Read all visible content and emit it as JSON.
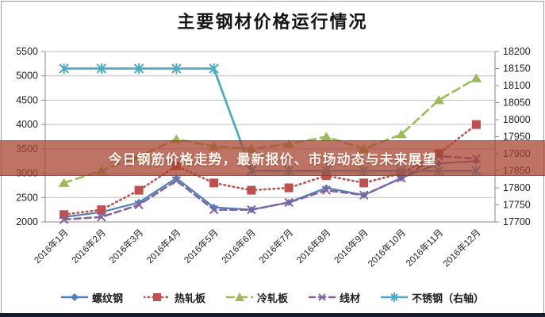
{
  "title": "主要钢材价格运行情况",
  "overlay": {
    "text": "今日钢筋价格走势，最新报价、市场动态与未来展望",
    "bg_color": "#aa4430",
    "text_color": "#fdf6ec"
  },
  "chart_data": {
    "type": "line",
    "title": "主要钢材价格运行情况",
    "categories": [
      "2016年1月",
      "2016年2月",
      "2016年3月",
      "2016年4月",
      "2016年5月",
      "2016年6月",
      "2016年7月",
      "2016年8月",
      "2016年9月",
      "2016年10月",
      "2016年11月",
      "2016年12月"
    ],
    "left_axis": {
      "min": 2000,
      "max": 5500,
      "step": 500,
      "ticks": [
        "5500",
        "5000",
        "4500",
        "4000",
        "3500",
        "3000",
        "2500",
        "2000"
      ]
    },
    "right_axis": {
      "min": 17700,
      "max": 18200,
      "step": 50,
      "ticks": [
        "18200",
        "18150",
        "18100",
        "18050",
        "18000",
        "17950",
        "17900",
        "17850",
        "17800",
        "17750",
        "17700"
      ]
    },
    "grid": true,
    "legend_position": "bottom",
    "series": [
      {
        "name": "螺纹钢",
        "axis": "left",
        "color": "#4f81bd",
        "marker": "diamond",
        "line": "solid",
        "values": [
          2100,
          2200,
          2400,
          2900,
          2300,
          2250,
          2400,
          2700,
          2550,
          2900,
          3200,
          3250
        ]
      },
      {
        "name": "热轧板",
        "axis": "left",
        "color": "#c0504d",
        "marker": "square",
        "line": "dotted",
        "values": [
          2150,
          2250,
          2650,
          3150,
          2800,
          2650,
          2700,
          2950,
          2800,
          3000,
          3400,
          4000
        ]
      },
      {
        "name": "冷轧板",
        "axis": "left",
        "color": "#9bbb59",
        "marker": "triangle",
        "line": "dashed",
        "values": [
          2800,
          3050,
          3350,
          3700,
          3550,
          3500,
          3600,
          3750,
          3500,
          3800,
          4500,
          4950
        ]
      },
      {
        "name": "线材",
        "axis": "left",
        "color": "#8064a2",
        "marker": "x",
        "line": "dash",
        "values": [
          2050,
          2100,
          2350,
          2850,
          2250,
          2250,
          2400,
          2650,
          2550,
          2900,
          3350,
          3300
        ]
      },
      {
        "name": "不锈钢（右轴）",
        "axis": "right",
        "color": "#4bacc6",
        "marker": "asterisk",
        "line": "solid",
        "values": [
          18150,
          18150,
          18150,
          18150,
          18150,
          17850,
          17850,
          17850,
          17850,
          17850,
          17850,
          17850
        ]
      }
    ]
  }
}
